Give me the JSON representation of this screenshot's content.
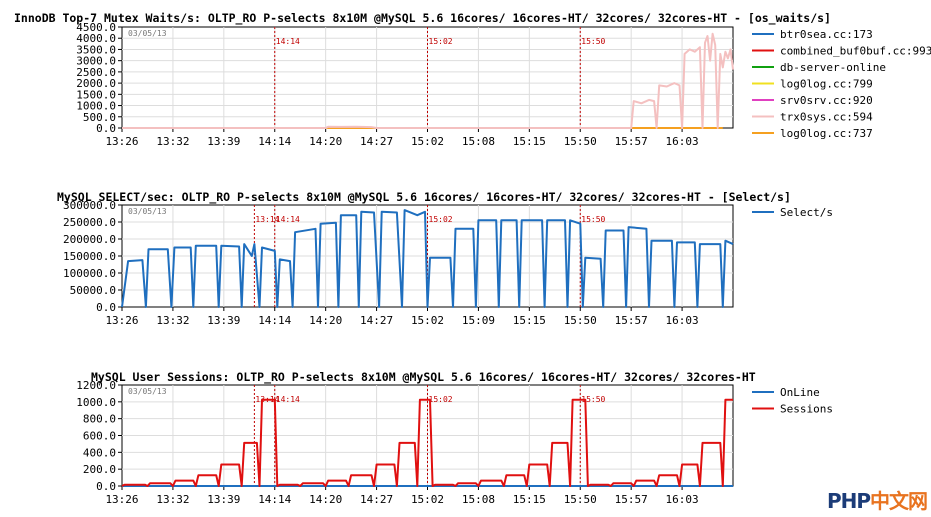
{
  "watermark": {
    "text_a": "PHP",
    "text_b": "中文网",
    "color_a": "#1c3c78",
    "color_b": "#e8731f"
  },
  "chart_data": [
    {
      "type": "line",
      "title": "InnoDB Top-7 Mutex Waits/s: OLTP_RO P-selects 8x10M @MySQL 5.6 16cores/ 16cores-HT/ 32cores/ 32cores-HT - [os_waits/s]",
      "date_label": "03/05/13",
      "ylim": [
        0,
        4500
      ],
      "yticks": [
        "0.0",
        "500.0",
        "1000.0",
        "1500.0",
        "2000.0",
        "2500.0",
        "3000.0",
        "3500.0",
        "4000.0",
        "4500.0"
      ],
      "xticks": [
        "13:26",
        "13:32",
        "13:39",
        "14:14",
        "14:20",
        "14:27",
        "15:02",
        "15:08",
        "15:15",
        "15:50",
        "15:57",
        "16:03"
      ],
      "markers": [
        {
          "x": 3,
          "label": "14:14"
        },
        {
          "x": 6,
          "label": "15:02"
        },
        {
          "x": 9,
          "label": "15:50"
        }
      ],
      "legend": [
        {
          "name": "btr0sea.cc:173",
          "color": "#1f6fbf"
        },
        {
          "name": "combined_buf0buf.cc:993",
          "color": "#e01010"
        },
        {
          "name": "db-server-online",
          "color": "#10a010"
        },
        {
          "name": "log0log.cc:799",
          "color": "#f0e020"
        },
        {
          "name": "srv0srv.cc:920",
          "color": "#e040c0"
        },
        {
          "name": "trx0sys.cc:594",
          "color": "#f4c0c0"
        },
        {
          "name": "log0log.cc:737",
          "color": "#f5a020"
        }
      ],
      "series": [
        {
          "name": "log0log.cc:737",
          "color": "#f5a020",
          "points": [
            [
              0,
              0
            ],
            [
              11.8,
              0
            ]
          ]
        },
        {
          "name": "trx0sys.cc:594",
          "color": "#f4c0c0",
          "points": [
            [
              0,
              0
            ],
            [
              4,
              0
            ],
            [
              4.05,
              60
            ],
            [
              4.3,
              50
            ],
            [
              4.6,
              60
            ],
            [
              4.9,
              40
            ],
            [
              5,
              0
            ],
            [
              10,
              0
            ],
            [
              10.05,
              1200
            ],
            [
              10.2,
              1100
            ],
            [
              10.35,
              1250
            ],
            [
              10.45,
              1200
            ],
            [
              10.5,
              0
            ],
            [
              10.55,
              1900
            ],
            [
              10.7,
              1850
            ],
            [
              10.85,
              2000
            ],
            [
              10.95,
              1900
            ],
            [
              11,
              0
            ],
            [
              11.05,
              3300
            ],
            [
              11.15,
              3500
            ],
            [
              11.25,
              3400
            ],
            [
              11.35,
              3600
            ],
            [
              11.4,
              0
            ],
            [
              11.45,
              3800
            ],
            [
              11.5,
              4100
            ],
            [
              11.55,
              3000
            ],
            [
              11.6,
              4200
            ],
            [
              11.65,
              3700
            ],
            [
              11.7,
              0
            ],
            [
              11.75,
              3300
            ],
            [
              11.8,
              2700
            ],
            [
              11.85,
              3400
            ],
            [
              11.9,
              3100
            ],
            [
              11.95,
              3500
            ],
            [
              12,
              2600
            ]
          ]
        }
      ]
    },
    {
      "type": "line",
      "title": "MySQL SELECT/sec: OLTP_RO P-selects 8x10M @MySQL 5.6 16cores/ 16cores-HT/ 32cores/ 32cores-HT - [Select/s]",
      "date_label": "03/05/13",
      "ylim": [
        0,
        300000
      ],
      "yticks": [
        "0.0",
        "50000.0",
        "100000.0",
        "150000.0",
        "200000.0",
        "250000.0",
        "300000.0"
      ],
      "xticks": [
        "13:26",
        "13:32",
        "13:39",
        "14:14",
        "14:20",
        "14:27",
        "15:02",
        "15:09",
        "15:15",
        "15:50",
        "15:57",
        "16:03"
      ],
      "markers": [
        {
          "x": 2.6,
          "label": "13:14"
        },
        {
          "x": 3,
          "label": "14:14"
        },
        {
          "x": 6,
          "label": "15:02"
        },
        {
          "x": 9,
          "label": "15:50"
        }
      ],
      "legend": [
        {
          "name": "Select/s",
          "color": "#1f6fbf"
        }
      ],
      "series": [
        {
          "name": "Select/s",
          "color": "#1f6fbf",
          "points": [
            [
              0,
              0
            ],
            [
              0.12,
              135000
            ],
            [
              0.4,
              138000
            ],
            [
              0.47,
              0
            ],
            [
              0.52,
              170000
            ],
            [
              0.9,
              170000
            ],
            [
              0.97,
              0
            ],
            [
              1.03,
              175000
            ],
            [
              1.35,
              175000
            ],
            [
              1.4,
              0
            ],
            [
              1.45,
              180000
            ],
            [
              1.85,
              180000
            ],
            [
              1.9,
              0
            ],
            [
              1.95,
              180000
            ],
            [
              2.3,
              178000
            ],
            [
              2.35,
              0
            ],
            [
              2.4,
              185000
            ],
            [
              2.55,
              150000
            ],
            [
              2.6,
              185000
            ],
            [
              2.7,
              0
            ],
            [
              2.75,
              175000
            ],
            [
              3,
              165000
            ],
            [
              3.05,
              0
            ],
            [
              3.1,
              140000
            ],
            [
              3.3,
              135000
            ],
            [
              3.35,
              0
            ],
            [
              3.4,
              220000
            ],
            [
              3.8,
              230000
            ],
            [
              3.85,
              0
            ],
            [
              3.9,
              245000
            ],
            [
              4.2,
              248000
            ],
            [
              4.25,
              0
            ],
            [
              4.3,
              270000
            ],
            [
              4.6,
              270000
            ],
            [
              4.65,
              0
            ],
            [
              4.7,
              280000
            ],
            [
              4.95,
              278000
            ],
            [
              5.05,
              0
            ],
            [
              5.1,
              280000
            ],
            [
              5.4,
              278000
            ],
            [
              5.5,
              0
            ],
            [
              5.55,
              285000
            ],
            [
              5.8,
              270000
            ],
            [
              5.95,
              280000
            ],
            [
              6,
              0
            ],
            [
              6.05,
              145000
            ],
            [
              6.45,
              145000
            ],
            [
              6.5,
              0
            ],
            [
              6.55,
              230000
            ],
            [
              6.9,
              230000
            ],
            [
              6.95,
              0
            ],
            [
              7,
              255000
            ],
            [
              7.35,
              255000
            ],
            [
              7.4,
              0
            ],
            [
              7.45,
              255000
            ],
            [
              7.75,
              255000
            ],
            [
              7.8,
              0
            ],
            [
              7.85,
              255000
            ],
            [
              8.25,
              255000
            ],
            [
              8.3,
              0
            ],
            [
              8.35,
              255000
            ],
            [
              8.7,
              255000
            ],
            [
              8.75,
              0
            ],
            [
              8.8,
              255000
            ],
            [
              9,
              245000
            ],
            [
              9.05,
              0
            ],
            [
              9.1,
              145000
            ],
            [
              9.4,
              142000
            ],
            [
              9.45,
              0
            ],
            [
              9.5,
              225000
            ],
            [
              9.85,
              225000
            ],
            [
              9.9,
              0
            ],
            [
              9.95,
              235000
            ],
            [
              10.3,
              230000
            ],
            [
              10.35,
              0
            ],
            [
              10.4,
              195000
            ],
            [
              10.8,
              195000
            ],
            [
              10.85,
              0
            ],
            [
              10.9,
              190000
            ],
            [
              11.25,
              190000
            ],
            [
              11.3,
              0
            ],
            [
              11.35,
              185000
            ],
            [
              11.75,
              185000
            ],
            [
              11.8,
              0
            ],
            [
              11.85,
              195000
            ],
            [
              12,
              185000
            ]
          ]
        }
      ]
    },
    {
      "type": "line",
      "title": "MySQL User Sessions: OLTP_RO P-selects 8x10M @MySQL 5.6 16cores/ 16cores-HT/ 32cores/ 32cores-HT",
      "date_label": "03/05/13",
      "ylim": [
        0,
        1200
      ],
      "yticks": [
        "0.0",
        "200.0",
        "400.0",
        "600.0",
        "800.0",
        "1000.0",
        "1200.0"
      ],
      "xticks": [
        "13:26",
        "13:32",
        "13:39",
        "14:14",
        "14:20",
        "14:27",
        "15:02",
        "15:08",
        "15:15",
        "15:50",
        "15:57",
        "16:03"
      ],
      "markers": [
        {
          "x": 2.6,
          "label": "13:14"
        },
        {
          "x": 3,
          "label": "14:14"
        },
        {
          "x": 6,
          "label": "15:02"
        },
        {
          "x": 9,
          "label": "15:50"
        }
      ],
      "legend": [
        {
          "name": "OnLine",
          "color": "#1f6fbf"
        },
        {
          "name": "Sessions",
          "color": "#e01010"
        }
      ],
      "series": [
        {
          "name": "OnLine",
          "color": "#1f6fbf",
          "points": [
            [
              0,
              0
            ],
            [
              12,
              0
            ]
          ]
        },
        {
          "name": "Sessions",
          "color": "#e01010",
          "points": [
            [
              0,
              0
            ],
            [
              0.05,
              16
            ],
            [
              0.45,
              16
            ],
            [
              0.5,
              0
            ],
            [
              0.55,
              32
            ],
            [
              0.95,
              32
            ],
            [
              1,
              0
            ],
            [
              1.05,
              64
            ],
            [
              1.4,
              64
            ],
            [
              1.45,
              0
            ],
            [
              1.5,
              128
            ],
            [
              1.85,
              128
            ],
            [
              1.9,
              0
            ],
            [
              1.95,
              256
            ],
            [
              2.3,
              256
            ],
            [
              2.35,
              0
            ],
            [
              2.4,
              512
            ],
            [
              2.65,
              512
            ],
            [
              2.7,
              0
            ],
            [
              2.75,
              1024
            ],
            [
              3,
              1024
            ],
            [
              3.05,
              0
            ],
            [
              3.1,
              16
            ],
            [
              3.45,
              16
            ],
            [
              3.5,
              0
            ],
            [
              3.55,
              32
            ],
            [
              3.95,
              32
            ],
            [
              4,
              0
            ],
            [
              4.05,
              64
            ],
            [
              4.4,
              64
            ],
            [
              4.45,
              0
            ],
            [
              4.5,
              128
            ],
            [
              4.9,
              128
            ],
            [
              4.95,
              0
            ],
            [
              5,
              256
            ],
            [
              5.35,
              256
            ],
            [
              5.4,
              0
            ],
            [
              5.45,
              512
            ],
            [
              5.75,
              512
            ],
            [
              5.8,
              0
            ],
            [
              5.85,
              1024
            ],
            [
              6.05,
              1024
            ],
            [
              6.1,
              0
            ],
            [
              6.15,
              16
            ],
            [
              6.5,
              16
            ],
            [
              6.55,
              0
            ],
            [
              6.6,
              32
            ],
            [
              6.95,
              32
            ],
            [
              7,
              0
            ],
            [
              7.05,
              64
            ],
            [
              7.45,
              64
            ],
            [
              7.5,
              0
            ],
            [
              7.55,
              128
            ],
            [
              7.9,
              128
            ],
            [
              7.95,
              0
            ],
            [
              8,
              256
            ],
            [
              8.35,
              256
            ],
            [
              8.4,
              0
            ],
            [
              8.45,
              512
            ],
            [
              8.75,
              512
            ],
            [
              8.8,
              0
            ],
            [
              8.85,
              1024
            ],
            [
              9.1,
              1024
            ],
            [
              9.15,
              0
            ],
            [
              9.2,
              16
            ],
            [
              9.55,
              16
            ],
            [
              9.6,
              0
            ],
            [
              9.65,
              32
            ],
            [
              10,
              32
            ],
            [
              10.05,
              0
            ],
            [
              10.1,
              64
            ],
            [
              10.45,
              64
            ],
            [
              10.5,
              0
            ],
            [
              10.55,
              128
            ],
            [
              10.9,
              128
            ],
            [
              10.95,
              0
            ],
            [
              11,
              256
            ],
            [
              11.3,
              256
            ],
            [
              11.35,
              0
            ],
            [
              11.4,
              512
            ],
            [
              11.75,
              512
            ],
            [
              11.8,
              0
            ],
            [
              11.85,
              1024
            ],
            [
              12,
              1024
            ]
          ]
        }
      ]
    }
  ]
}
